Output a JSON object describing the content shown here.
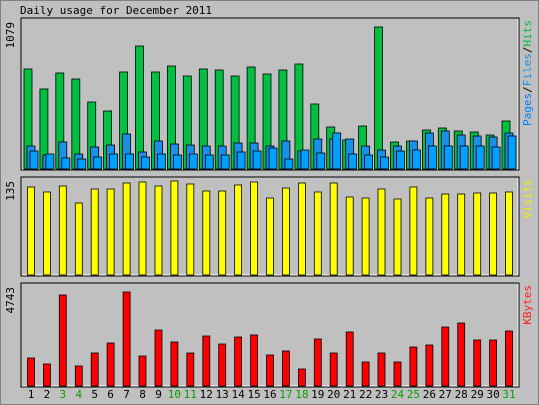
{
  "chart_data": {
    "type": "bar",
    "title": "Daily usage for December 2011",
    "days": [
      "1",
      "2",
      "3",
      "4",
      "5",
      "6",
      "7",
      "8",
      "9",
      "10",
      "11",
      "12",
      "13",
      "14",
      "15",
      "16",
      "17",
      "18",
      "19",
      "20",
      "21",
      "22",
      "23",
      "24",
      "25",
      "26",
      "27",
      "28",
      "29",
      "30",
      "31"
    ],
    "weekend_days": [
      "3",
      "4",
      "10",
      "11",
      "17",
      "18",
      "24",
      "25",
      "31"
    ],
    "panels": [
      {
        "id": "hits",
        "ymax_label": "1079",
        "ymax": 1079,
        "legend": [
          {
            "text": "Pages",
            "color": "#0080ff"
          },
          {
            "text": "/",
            "color": "#000000"
          },
          {
            "text": "Files",
            "color": "#1a90e8"
          },
          {
            "text": "/",
            "color": "#000000"
          },
          {
            "text": "Hits",
            "color": "#00c040"
          }
        ],
        "series": [
          {
            "name": "Hits",
            "color": "#00c040",
            "values": [
              731,
              581,
              702,
              655,
              486,
              424,
              706,
              896,
              706,
              751,
              681,
              726,
              721,
              676,
              746,
              696,
              721,
              766,
              476,
              306,
              211,
              311,
              1037,
              196,
              201,
              286,
              301,
              276,
              271,
              251,
              351
            ]
          },
          {
            "name": "Files",
            "color": "#1a90e8",
            "values": [
              171,
              101,
              196,
              106,
              161,
              176,
              256,
              126,
              201,
              181,
              176,
              171,
              171,
              191,
              191,
              171,
              206,
              131,
              221,
              221,
              216,
              171,
              141,
              171,
              201,
              261,
              276,
              251,
              241,
              231,
              261
            ]
          },
          {
            "name": "Pages",
            "color": "#00a0ff",
            "values": [
              131,
              111,
              81,
              71,
              91,
              111,
              111,
              91,
              111,
              101,
              111,
              101,
              101,
              121,
              131,
              151,
              71,
              141,
              116,
              261,
              111,
              101,
              91,
              131,
              141,
              171,
              171,
              171,
              171,
              161,
              241
            ]
          }
        ]
      },
      {
        "id": "visits",
        "ymax_label": "135",
        "ymax": 135,
        "legend": [
          {
            "text": "Visits",
            "color": "#f0f000"
          }
        ],
        "series": [
          {
            "name": "Visits",
            "color": "#ffff00",
            "values": [
              125,
              118,
              126,
              103,
              122,
              122,
              131,
              132,
              127,
              133,
              130,
              119,
              120,
              128,
              132,
              110,
              124,
              131,
              118,
              131,
              111,
              110,
              122,
              108,
              125,
              109,
              115,
              115,
              117,
              116,
              118
            ]
          }
        ]
      },
      {
        "id": "kbytes",
        "ymax_label": "4743",
        "ymax": 4743,
        "legend": [
          {
            "text": "KBytes",
            "color": "#ff2020"
          }
        ],
        "series": [
          {
            "name": "KBytes",
            "color": "#ff0000",
            "values": [
              1339,
              1026,
              4338,
              970,
              1548,
              2051,
              4448,
              1410,
              2641,
              2078,
              1548,
              2378,
              1980,
              2330,
              2399,
              1448,
              1661,
              805,
              2210,
              1571,
              2555,
              1117,
              1580,
              1156,
              1853,
              1954,
              2792,
              3010,
              2180,
              2202,
              2607
            ]
          }
        ]
      }
    ]
  }
}
